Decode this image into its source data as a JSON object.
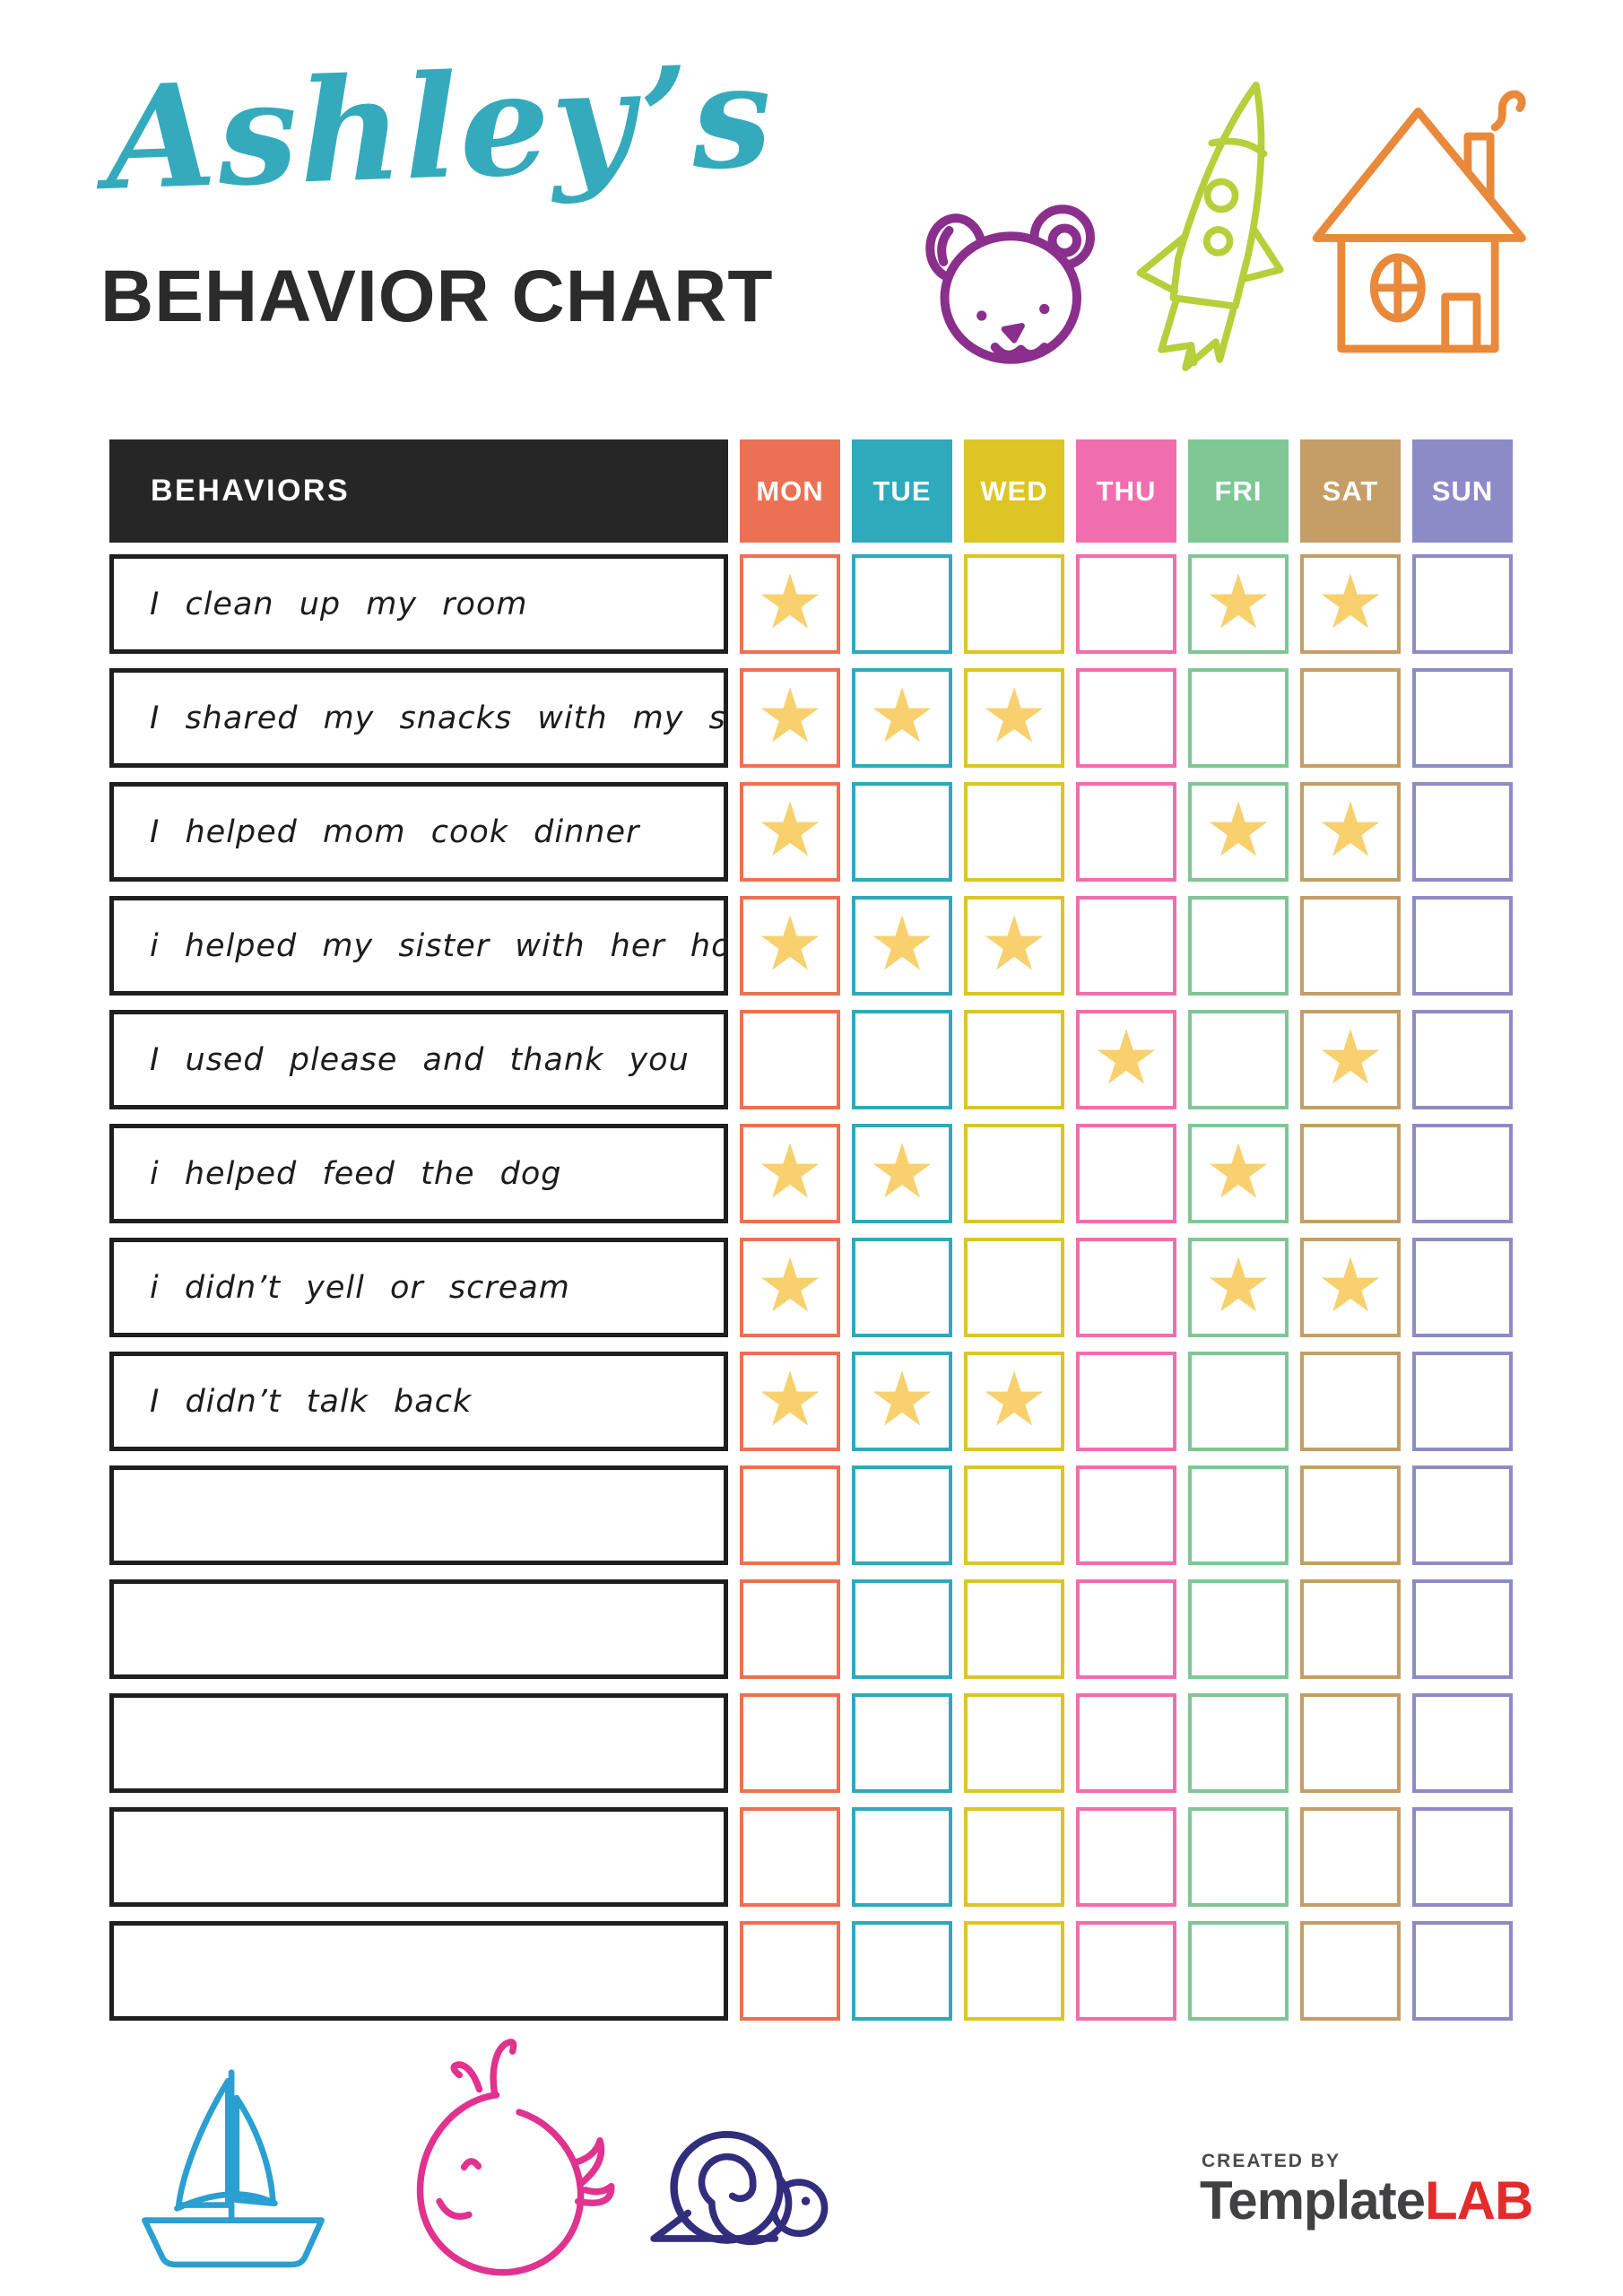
{
  "header": {
    "name": "Ashley’s",
    "title": "BEHAVIOR CHART"
  },
  "table": {
    "behaviors_header": "BEHAVIORS",
    "days": [
      {
        "label": "MON",
        "color": "#ec7154"
      },
      {
        "label": "TUE",
        "color": "#2fa9bc"
      },
      {
        "label": "WED",
        "color": "#ddc525"
      },
      {
        "label": "THU",
        "color": "#f06eae"
      },
      {
        "label": "FRI",
        "color": "#7fc795"
      },
      {
        "label": "SAT",
        "color": "#c49e66"
      },
      {
        "label": "SUN",
        "color": "#8d8bc7"
      }
    ],
    "rows": [
      {
        "behavior": "I clean up my room",
        "stars": [
          1,
          0,
          0,
          0,
          1,
          1,
          0
        ]
      },
      {
        "behavior": "I shared my snacks with my sister",
        "stars": [
          1,
          1,
          1,
          0,
          0,
          0,
          0
        ]
      },
      {
        "behavior": "I helped mom cook dinner",
        "stars": [
          1,
          0,
          0,
          0,
          1,
          1,
          0
        ]
      },
      {
        "behavior": "i helped my sister with her homework",
        "stars": [
          1,
          1,
          1,
          0,
          0,
          0,
          0
        ]
      },
      {
        "behavior": "I used please and thank you",
        "stars": [
          0,
          0,
          0,
          1,
          0,
          1,
          0
        ]
      },
      {
        "behavior": "i helped feed the dog",
        "stars": [
          1,
          1,
          0,
          0,
          1,
          0,
          0
        ]
      },
      {
        "behavior": "i didn’t yell or scream",
        "stars": [
          1,
          0,
          0,
          0,
          1,
          1,
          0
        ]
      },
      {
        "behavior": "I didn’t talk back",
        "stars": [
          1,
          1,
          1,
          0,
          0,
          0,
          0
        ]
      },
      {
        "behavior": "",
        "stars": [
          0,
          0,
          0,
          0,
          0,
          0,
          0
        ]
      },
      {
        "behavior": "",
        "stars": [
          0,
          0,
          0,
          0,
          0,
          0,
          0
        ]
      },
      {
        "behavior": "",
        "stars": [
          0,
          0,
          0,
          0,
          0,
          0,
          0
        ]
      },
      {
        "behavior": "",
        "stars": [
          0,
          0,
          0,
          0,
          0,
          0,
          0
        ]
      },
      {
        "behavior": "",
        "stars": [
          0,
          0,
          0,
          0,
          0,
          0,
          0
        ]
      }
    ],
    "star_glyph": "★",
    "star_color": "#f8d06e"
  },
  "footer": {
    "created_by": "CREATED BY",
    "brand_template": "Template",
    "brand_lab": "LAB"
  },
  "colors": {
    "title_script": "#35aabc",
    "title_main": "#2b2b2b",
    "behaviors_header_bg": "#262626",
    "bear": "#8b2f8d",
    "rocket": "#b5d03b",
    "house": "#e8893b",
    "boat": "#2b9fd1",
    "whale": "#e0338f",
    "snail": "#322d7d",
    "logo_gray": "#414042",
    "logo_red": "#e22c2c"
  }
}
